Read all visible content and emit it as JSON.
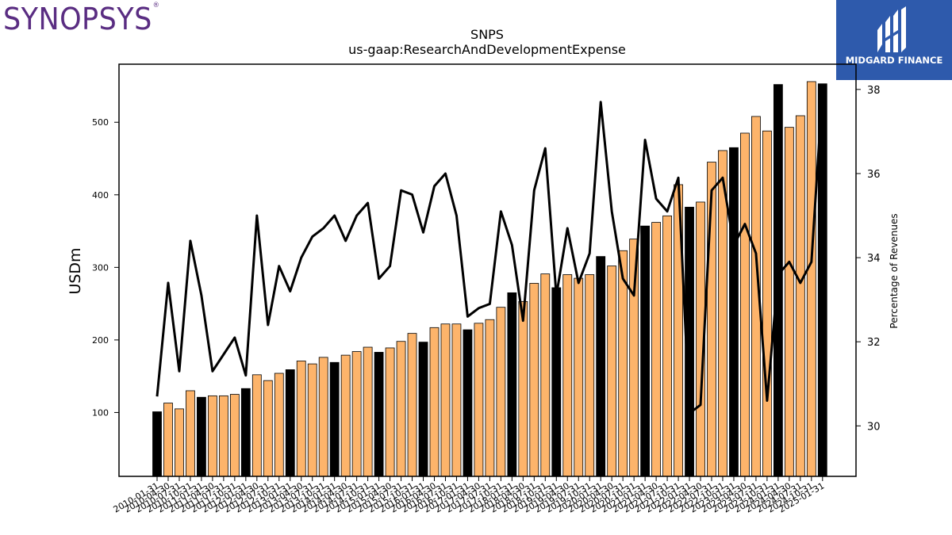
{
  "branding": {
    "left_logo_text": "SYNOPSYS",
    "left_logo_mark": "®",
    "left_logo_color": "#5a2d82",
    "right_logo_text": "MIDGARD FINANCE",
    "right_logo_bg": "#2e5aac"
  },
  "chart_data": {
    "type": "bar",
    "title": "SNPS",
    "subtitle": "us-gaap:ResearchAndDevelopmentExpense",
    "ylabel": "USDm",
    "y2label": "Percentage of Revenues",
    "ylim": [
      12,
      580
    ],
    "y2lim": [
      28.8,
      38.6
    ],
    "yticks": [
      100,
      200,
      300,
      400,
      500
    ],
    "y2ticks": [
      30,
      32,
      34,
      36,
      38
    ],
    "bar_colors": {
      "annual": "#000000",
      "quarter": "#fdb46b"
    },
    "line_color": "#000000",
    "grid": false,
    "categories": [
      "2010-01-31",
      "2010-04-30",
      "2010-07-31",
      "2010-10-31",
      "2011-01-31",
      "2011-04-30",
      "2011-07-31",
      "2011-10-31",
      "2012-01-31",
      "2012-04-30",
      "2012-07-31",
      "2012-10-31",
      "2013-01-31",
      "2013-04-30",
      "2013-07-31",
      "2013-10-31",
      "2014-01-31",
      "2014-04-30",
      "2014-07-31",
      "2014-10-31",
      "2015-01-31",
      "2015-04-30",
      "2015-07-31",
      "2015-10-31",
      "2016-01-31",
      "2016-04-30",
      "2016-07-31",
      "2016-10-31",
      "2017-01-31",
      "2017-04-30",
      "2017-07-31",
      "2017-10-31",
      "2018-01-31",
      "2018-04-30",
      "2018-07-31",
      "2018-10-31",
      "2019-01-31",
      "2019-04-30",
      "2019-07-31",
      "2019-10-31",
      "2020-01-31",
      "2020-04-30",
      "2020-07-31",
      "2020-10-31",
      "2021-01-31",
      "2021-04-30",
      "2021-07-31",
      "2021-10-31",
      "2022-01-31",
      "2022-04-30",
      "2022-07-31",
      "2022-10-31",
      "2023-01-31",
      "2023-04-30",
      "2023-07-31",
      "2023-10-31",
      "2024-01-31",
      "2024-04-30",
      "2024-07-31",
      "2024-10-31",
      "2025-01-31"
    ],
    "tick_labels": [
      "2010-01-31",
      "2010-04-30",
      "2010-07-31",
      "2010-10-31",
      "2011-01-31",
      "2011-04-30",
      "2011-07-31",
      "2011-10-31",
      "2012-01-31",
      "2012-04-30",
      "2012-07-31",
      "2012-10-31",
      "2013-01-31",
      "2013-04-30",
      "2013-07-31",
      "2013-10-31",
      "2014-01-31",
      "2014-04-30",
      "2014-07-31",
      "2014-10-31",
      "2015-01-31",
      "2015-04-30",
      "2015-07-31",
      "2015-10-31",
      "2016-01-31",
      "2016-04-30",
      "2016-07-31",
      "2016-10-31",
      "2017-01-31",
      "2017-04-30",
      "2017-07-31",
      "2017-10-31",
      "2018-01-31",
      "2018-04-30",
      "2018-07-31",
      "2018-10-31",
      "2019-01-31",
      "2019-04-30",
      "2019-07-31",
      "2019-10-31",
      "2020-01-31",
      "2020-04-30",
      "2020-07-31",
      "2020-10-31",
      "2021-01-31",
      "2021-04-30",
      "2021-07-31",
      "2021-10-31",
      "2022-01-31",
      "2022-04-30",
      "2022-07-31",
      "2022-10-31",
      "2023-01-31",
      "2023-04-30",
      "2023-07-31",
      "2023-10-31",
      "2024-01-31",
      "2024-04-30",
      "2024-07-31",
      "2024-10-31",
      "2025-01-31"
    ],
    "series": [
      {
        "kind": "bar",
        "axis": "left",
        "values": [
          101,
          113,
          105,
          130,
          121,
          123,
          123,
          125,
          133,
          152,
          144,
          154,
          159,
          171,
          167,
          176,
          169,
          179,
          184,
          190,
          183,
          189,
          198,
          209,
          197,
          217,
          222,
          222,
          214,
          223,
          228,
          245,
          265,
          253,
          278,
          291,
          272,
          290,
          285,
          290,
          315,
          302,
          323,
          339,
          357,
          362,
          371,
          414,
          383,
          390,
          445,
          461,
          465,
          485,
          508,
          488,
          552,
          493,
          509,
          556,
          553
        ],
        "annual": [
          true,
          false,
          false,
          false,
          true,
          false,
          false,
          false,
          true,
          false,
          false,
          false,
          true,
          false,
          false,
          false,
          true,
          false,
          false,
          false,
          true,
          false,
          false,
          false,
          true,
          false,
          false,
          false,
          true,
          false,
          false,
          false,
          true,
          false,
          false,
          false,
          true,
          false,
          false,
          false,
          true,
          false,
          false,
          false,
          true,
          false,
          false,
          false,
          true,
          false,
          false,
          false,
          true,
          false,
          false,
          false,
          true,
          false,
          false,
          false,
          true
        ]
      },
      {
        "name": "Percentage of Revenues",
        "kind": "line",
        "axis": "right",
        "values": [
          30.7,
          33.4,
          31.3,
          34.4,
          33.1,
          31.3,
          31.7,
          32.1,
          31.2,
          35.0,
          32.4,
          33.8,
          33.2,
          34.0,
          34.5,
          34.7,
          35.0,
          34.4,
          35.0,
          35.3,
          33.5,
          33.8,
          35.6,
          35.5,
          34.6,
          35.7,
          36.0,
          35.0,
          32.6,
          32.8,
          32.9,
          35.1,
          34.3,
          32.5,
          35.6,
          36.6,
          33.1,
          34.7,
          33.4,
          34.1,
          37.7,
          35.1,
          33.5,
          33.1,
          36.8,
          35.4,
          35.1,
          35.9,
          30.3,
          30.5,
          35.6,
          35.9,
          34.3,
          34.8,
          34.1,
          30.6,
          33.6,
          33.9,
          33.4,
          33.9,
          38.0
        ]
      }
    ]
  }
}
